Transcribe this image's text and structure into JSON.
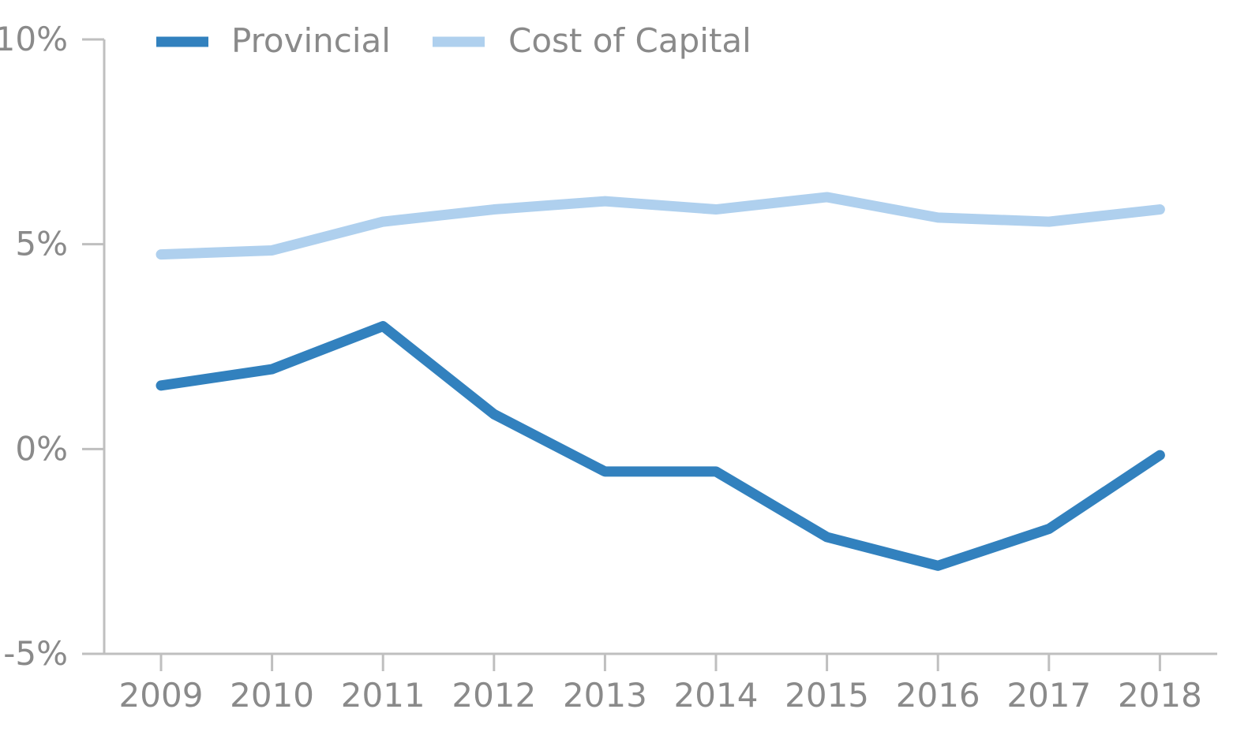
{
  "chart_data": {
    "type": "line",
    "title": "",
    "xlabel": "",
    "ylabel": "",
    "categories": [
      "2009",
      "2010",
      "2011",
      "2012",
      "2013",
      "2014",
      "2015",
      "2016",
      "2017",
      "2018"
    ],
    "ylim": [
      -5,
      10
    ],
    "yticks": [
      {
        "value": 10,
        "label": "10%"
      },
      {
        "value": 5,
        "label": "5%"
      },
      {
        "value": 0,
        "label": "0%"
      },
      {
        "value": -5,
        "label": "-5%"
      }
    ],
    "series": [
      {
        "name": "Provincial",
        "color": "#3281be",
        "values": [
          1.55,
          1.95,
          3.0,
          0.85,
          -0.55,
          -0.55,
          -2.15,
          -2.85,
          -1.95,
          -0.15
        ]
      },
      {
        "name": "Cost of Capital",
        "color": "#afd0ee",
        "values": [
          4.75,
          4.85,
          5.55,
          5.85,
          6.05,
          5.85,
          6.15,
          5.65,
          5.55,
          5.85
        ]
      }
    ],
    "legend_position": "top-left",
    "grid": false
  }
}
